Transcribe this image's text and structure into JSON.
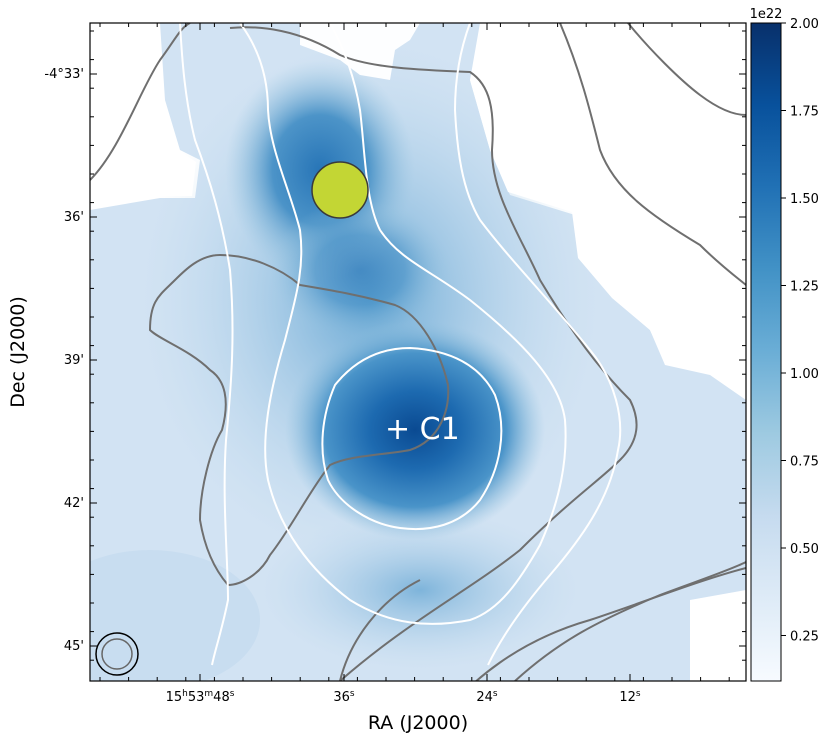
{
  "chart_data": {
    "type": "heatmap",
    "title": "",
    "xlabel": "RA (J2000)",
    "ylabel": "Dec (J2000)",
    "x_ticks": [
      {
        "h": "15",
        "m": "53",
        "s": "48"
      },
      {
        "s": "36"
      },
      {
        "s": "24"
      },
      {
        "s": "12"
      }
    ],
    "y_ticks": [
      "-4°33'",
      "36'",
      "39'",
      "42'",
      "45'"
    ],
    "colorbar": {
      "colormap": "Blues",
      "range": [
        1.2e+21,
        2e+22
      ],
      "offset_label": "1e22",
      "ticks": [
        "0.25",
        "0.50",
        "0.75",
        "1.00",
        "1.25",
        "1.50",
        "1.75",
        "2.00"
      ]
    },
    "sources": [
      {
        "name": "C1",
        "marker": "+",
        "label": "+ C1"
      }
    ],
    "marker_circle": {
      "fill": "#c3d634",
      "stroke": "#3a3a3a"
    },
    "beam": {
      "color_outer": "#000000",
      "color_inner": "#666666"
    },
    "contours": {
      "white": "#ffffff",
      "gray": "#6f6f6f"
    }
  }
}
